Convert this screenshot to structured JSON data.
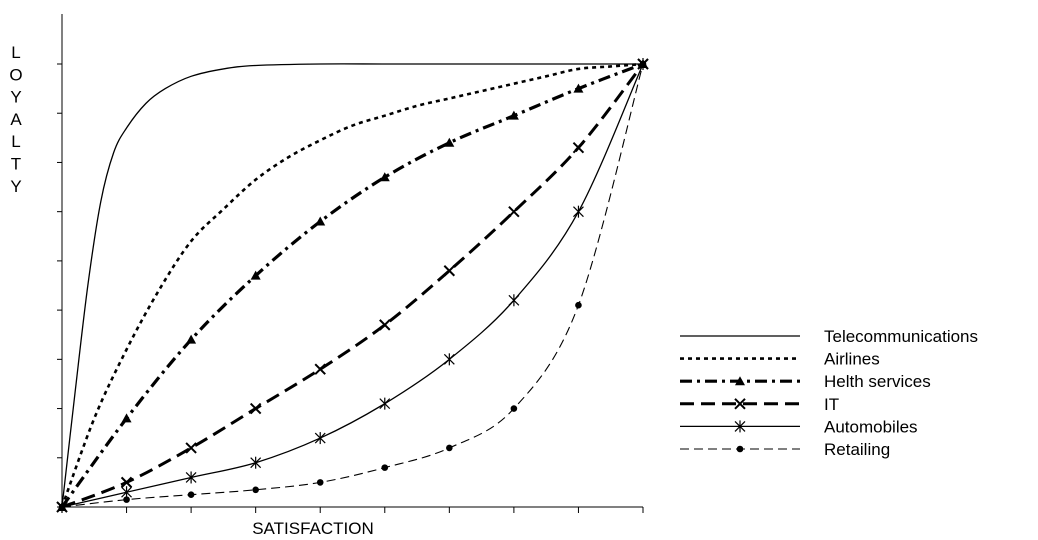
{
  "chart_data": {
    "type": "line",
    "title": "",
    "xlabel": "SATISFACTION",
    "ylabel": "LOYALTY",
    "xlim": [
      0,
      9
    ],
    "ylim": [
      0,
      9
    ],
    "x_ticks": [
      0,
      1,
      2,
      3,
      4,
      5,
      6,
      7,
      8,
      9
    ],
    "y_ticks": [
      0,
      1,
      2,
      3,
      4,
      5,
      6,
      7,
      8,
      9
    ],
    "grid": false,
    "legend_position": "bottom-right",
    "series": [
      {
        "name": "Telecommunications",
        "style": "solid-thin",
        "marker": "none",
        "x": [
          0,
          0.2,
          0.4,
          0.6,
          0.8,
          1,
          1.3,
          1.6,
          2,
          2.5,
          3,
          4,
          5,
          6,
          7,
          8,
          9
        ],
        "y": [
          0,
          2.3,
          4.5,
          6.2,
          7.2,
          7.7,
          8.2,
          8.5,
          8.75,
          8.9,
          8.97,
          9,
          9,
          9,
          9,
          9,
          9
        ]
      },
      {
        "name": "Airlines",
        "style": "dotted",
        "marker": "none",
        "x": [
          0,
          0.5,
          1,
          1.5,
          2,
          2.5,
          3,
          3.5,
          4,
          4.5,
          5,
          5.5,
          6,
          6.5,
          7,
          7.5,
          8,
          8.5,
          9
        ],
        "y": [
          0,
          1.8,
          3.2,
          4.4,
          5.4,
          6.05,
          6.65,
          7.1,
          7.45,
          7.75,
          7.95,
          8.15,
          8.3,
          8.45,
          8.6,
          8.75,
          8.9,
          8.95,
          9
        ]
      },
      {
        "name": "Helth services",
        "style": "dash-dot",
        "marker": "triangle",
        "x": [
          0,
          1,
          2,
          3,
          4,
          5,
          6,
          7,
          8,
          9
        ],
        "y": [
          0,
          1.8,
          3.4,
          4.7,
          5.8,
          6.7,
          7.4,
          7.95,
          8.5,
          9
        ]
      },
      {
        "name": "IT",
        "style": "long-dash-thick",
        "marker": "x",
        "x": [
          0,
          1,
          2,
          3,
          4,
          5,
          6,
          7,
          8,
          9
        ],
        "y": [
          0,
          0.5,
          1.2,
          2.0,
          2.8,
          3.7,
          4.8,
          6.0,
          7.3,
          9
        ]
      },
      {
        "name": "Automobiles",
        "style": "solid-thin",
        "marker": "asterisk",
        "x": [
          0,
          1,
          2,
          3,
          4,
          5,
          6,
          7,
          8,
          9
        ],
        "y": [
          0,
          0.3,
          0.6,
          0.9,
          1.4,
          2.1,
          3.0,
          4.2,
          6.0,
          9
        ]
      },
      {
        "name": "Retailing",
        "style": "long-dash-thin",
        "marker": "dot",
        "x": [
          0,
          1,
          2,
          3,
          4,
          5,
          6,
          7,
          8,
          9
        ],
        "y": [
          0,
          0.15,
          0.25,
          0.35,
          0.5,
          0.8,
          1.2,
          2.0,
          4.1,
          9
        ]
      }
    ]
  }
}
